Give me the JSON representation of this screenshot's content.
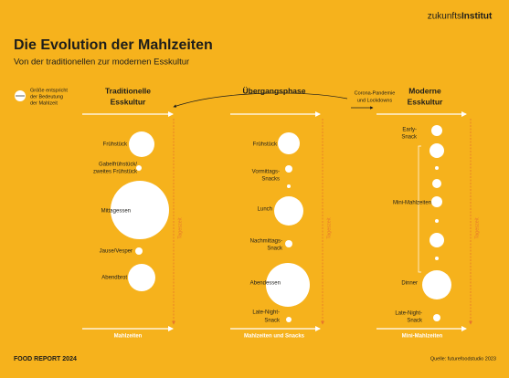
{
  "header": {
    "brand_1": "zukunfts",
    "brand_2": "Institut",
    "title": "Die Evolution der Mahlzeiten",
    "subtitle": "Von der traditionellen zur modernen Esskultur"
  },
  "legend": [
    "Größe entspricht",
    "der Bedeutung",
    "der Mahlzeit"
  ],
  "transition_note": [
    "Corona-Pandemie",
    "und Lockdowns"
  ],
  "columns": [
    {
      "title": [
        "Traditionelle",
        "Esskultur"
      ],
      "axis_label": "Tageszeit",
      "bottom_label": "Mahlzeiten",
      "items": [
        [
          "Frühstück"
        ],
        [
          "Gabelfrühstück/",
          "zweites Frühstück"
        ],
        [
          "Mittagessen"
        ],
        [
          "Jause/Vesper"
        ],
        [
          "Abendbrot"
        ]
      ]
    },
    {
      "title": [
        "Übergangsphase"
      ],
      "axis_label": "Tageszeit",
      "bottom_label": "Mahlzeiten und Snacks",
      "items": [
        [
          "Frühstück"
        ],
        [
          "Vormittags-",
          "Snacks"
        ],
        [
          "Lunch"
        ],
        [
          "Nachmittags-",
          "Snack"
        ],
        [
          "Abendessen"
        ],
        [
          "Late-Night-",
          "Snack"
        ]
      ]
    },
    {
      "title": [
        "Moderne",
        "Esskultur"
      ],
      "axis_label": "Tageszeit",
      "bottom_label": "Mini-Mahlzeiten",
      "items": [
        [
          "Early-",
          "Snack"
        ],
        [
          "Mini-Mahlzeiten"
        ],
        [
          "Dinner"
        ],
        [
          "Late-Night-",
          "Snack"
        ]
      ]
    }
  ],
  "footer": {
    "report": "FOOD REPORT 2024",
    "source": "Quelle: futurefoodstudio 2023"
  }
}
